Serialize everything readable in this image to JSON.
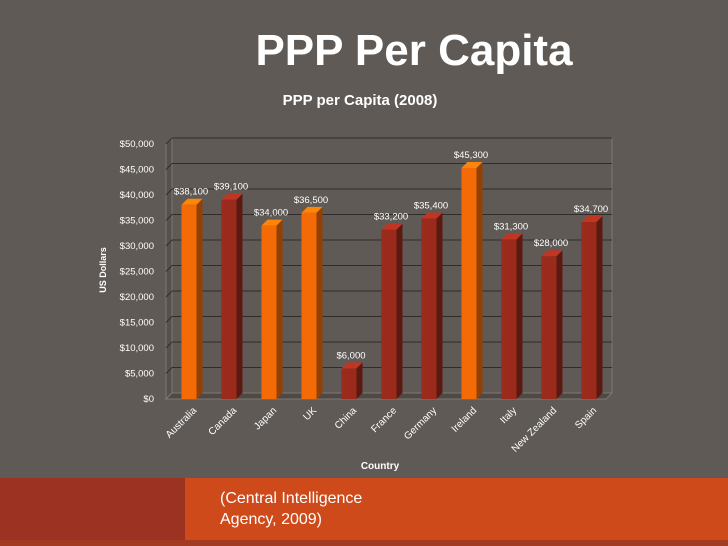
{
  "slide": {
    "title": "PPP Per Capita",
    "source": "(Central Intelligence Agency, 2009)"
  },
  "colors": {
    "highlight_bar": "#f46a07",
    "normal_bar": "#9a2a1c",
    "background": "#5f5a56",
    "footer": "#cf4a1b"
  },
  "chart_data": {
    "type": "bar",
    "title": "PPP per Capita (2008)",
    "xlabel": "Country",
    "ylabel": "US Dollars",
    "ylim": [
      0,
      50000
    ],
    "yticks": [
      "$0",
      "$5,000",
      "$10,000",
      "$15,000",
      "$20,000",
      "$25,000",
      "$30,000",
      "$35,000",
      "$40,000",
      "$45,000",
      "$50,000"
    ],
    "grid": true,
    "categories": [
      "Australia",
      "Canada",
      "Japan",
      "UK",
      "China",
      "France",
      "Germany",
      "Ireland",
      "Italy",
      "New Zealand",
      "Spain"
    ],
    "values": [
      38100,
      39100,
      34000,
      36500,
      6000,
      33200,
      35400,
      45300,
      31300,
      28000,
      34700
    ],
    "data_labels": [
      "$38,100",
      "$39,100",
      "$34,000",
      "$36,500",
      "$6,000",
      "$33,200",
      "$35,400",
      "$45,300",
      "$31,300",
      "$28,000",
      "$34,700"
    ],
    "highlighted": [
      true,
      false,
      true,
      true,
      false,
      false,
      false,
      true,
      false,
      false,
      false
    ]
  }
}
